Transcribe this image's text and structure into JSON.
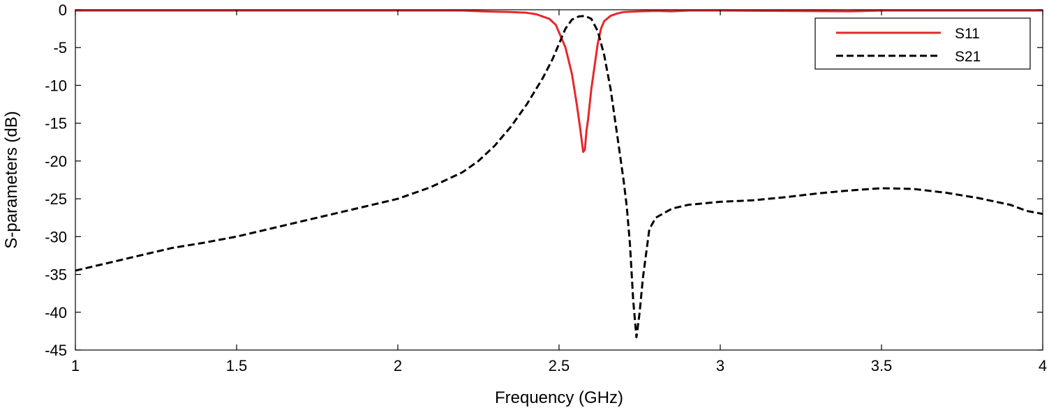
{
  "chart_data": {
    "type": "line",
    "xlabel": "Frequency (GHz)",
    "ylabel": "S-parameters (dB)",
    "xlim": [
      1,
      4
    ],
    "ylim": [
      -45,
      0
    ],
    "xticks": [
      1,
      1.5,
      2,
      2.5,
      3,
      3.5,
      4
    ],
    "yticks": [
      0,
      -5,
      -10,
      -15,
      -20,
      -25,
      -30,
      -35,
      -40,
      -45
    ],
    "xtick_labels": [
      "1",
      "1.5",
      "2",
      "2.5",
      "3",
      "3.5",
      "4"
    ],
    "ytick_labels": [
      "0",
      "-5",
      "-10",
      "-15",
      "-20",
      "-25",
      "-30",
      "-35",
      "-40",
      "-45"
    ],
    "grid": false,
    "legend": "top-right",
    "series": [
      {
        "name": "S11",
        "color": "#e8262b",
        "style": "solid",
        "x": [
          1.0,
          1.5,
          2.0,
          2.2,
          2.26,
          2.3,
          2.35,
          2.4,
          2.43,
          2.45,
          2.47,
          2.49,
          2.5,
          2.52,
          2.54,
          2.555,
          2.565,
          2.575,
          2.58,
          2.585,
          2.59,
          2.6,
          2.61,
          2.62,
          2.63,
          2.64,
          2.66,
          2.68,
          2.7,
          2.75,
          2.8,
          2.85,
          2.9,
          3.0,
          3.4,
          3.5,
          4.0
        ],
        "y": [
          -0.1,
          -0.1,
          -0.1,
          -0.1,
          -0.2,
          -0.25,
          -0.3,
          -0.4,
          -0.6,
          -0.9,
          -1.2,
          -2.0,
          -3.0,
          -5.0,
          -8.5,
          -12.5,
          -15.5,
          -18.8,
          -18.5,
          -16.0,
          -14.5,
          -10.5,
          -7.5,
          -4.5,
          -2.5,
          -1.5,
          -0.8,
          -0.5,
          -0.3,
          -0.2,
          -0.15,
          -0.2,
          -0.1,
          -0.1,
          -0.2,
          -0.1,
          -0.1
        ]
      },
      {
        "name": "S21",
        "color": "#000000",
        "style": "dashed",
        "x": [
          1.0,
          1.05,
          1.1,
          1.2,
          1.3,
          1.4,
          1.5,
          1.6,
          1.7,
          1.8,
          1.9,
          2.0,
          2.1,
          2.2,
          2.25,
          2.3,
          2.35,
          2.4,
          2.45,
          2.48,
          2.5,
          2.52,
          2.54,
          2.56,
          2.58,
          2.6,
          2.62,
          2.64,
          2.66,
          2.68,
          2.7,
          2.71,
          2.72,
          2.73,
          2.74,
          2.75,
          2.76,
          2.78,
          2.8,
          2.85,
          2.9,
          3.0,
          3.1,
          3.2,
          3.3,
          3.4,
          3.5,
          3.6,
          3.7,
          3.8,
          3.9,
          3.95,
          4.0
        ],
        "y": [
          -34.5,
          -34.0,
          -33.5,
          -32.5,
          -31.5,
          -30.8,
          -30.0,
          -29.0,
          -28.0,
          -27.0,
          -26.0,
          -25.0,
          -23.5,
          -21.5,
          -20.0,
          -18.0,
          -15.5,
          -12.5,
          -9.0,
          -6.5,
          -4.5,
          -2.5,
          -1.3,
          -0.9,
          -0.8,
          -1.2,
          -2.8,
          -6.0,
          -10.5,
          -16.5,
          -22.5,
          -26.0,
          -31.0,
          -38.5,
          -43.3,
          -40.0,
          -35.5,
          -29.0,
          -27.5,
          -26.3,
          -25.8,
          -25.4,
          -25.2,
          -24.8,
          -24.3,
          -23.9,
          -23.6,
          -23.7,
          -24.2,
          -24.9,
          -25.8,
          -26.6,
          -27.0
        ]
      }
    ]
  }
}
